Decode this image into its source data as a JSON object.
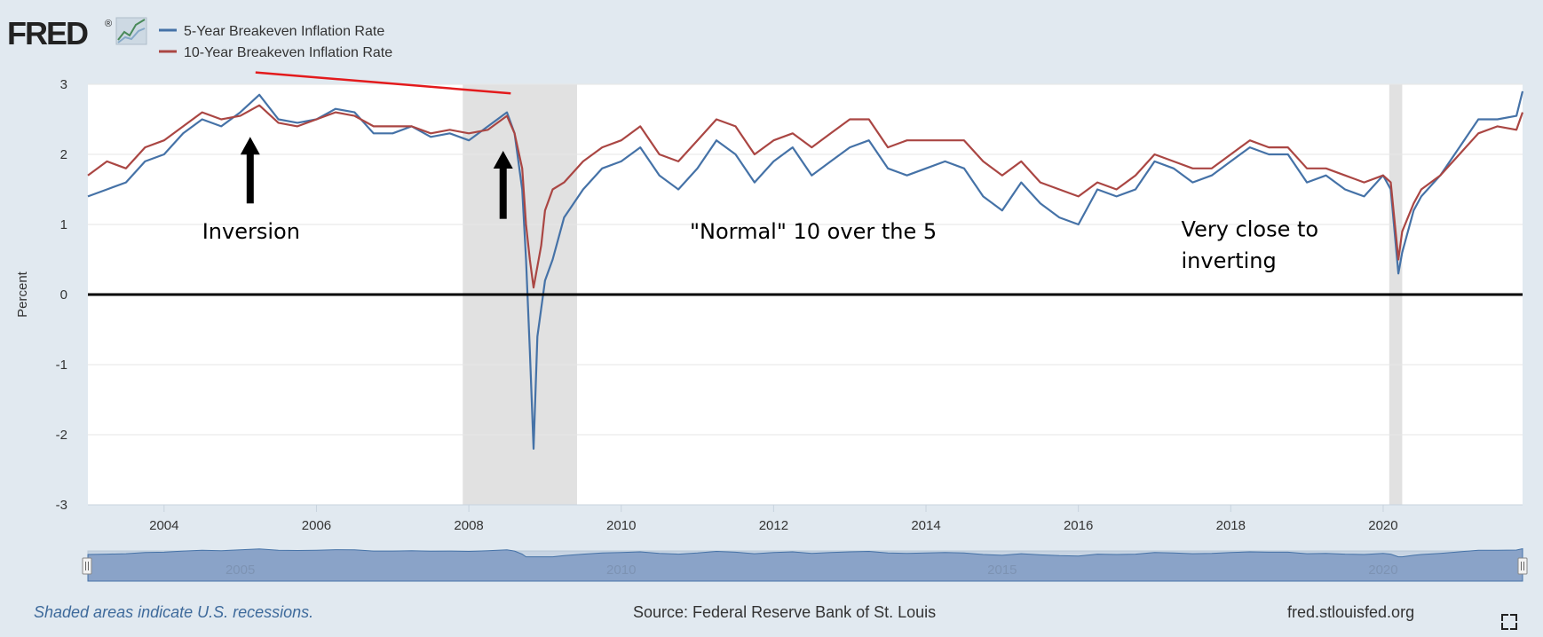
{
  "brand": {
    "logo_text": "FRED",
    "logo_mark": "®",
    "logo_icon": "line-graph-icon"
  },
  "colors": {
    "background": "#e1e9f0",
    "plot_bg": "#ffffff",
    "recession": "#e1e1e1",
    "series_5y": "#4572a7",
    "series_10y": "#aa4643",
    "annotation_line": "#e31a1c"
  },
  "footer": {
    "note": "Shaded areas indicate U.S. recessions.",
    "source": "Source: Federal Reserve Bank of St. Louis",
    "site": "fred.stlouisfed.org",
    "fullscreen_icon": "fullscreen-icon"
  },
  "chart_data": {
    "type": "line",
    "ylabel": "Percent",
    "xlim": [
      2003.0,
      2021.83
    ],
    "ylim": [
      -3,
      3
    ],
    "grid": true,
    "legend_placement": "top-left",
    "x_ticks": [
      "2004",
      "2006",
      "2008",
      "2010",
      "2012",
      "2014",
      "2016",
      "2018",
      "2020"
    ],
    "y_ticks": [
      "3",
      "2",
      "1",
      "0",
      "-1",
      "-2",
      "-3"
    ],
    "navigator_labels": [
      "2005",
      "2010",
      "2015",
      "2020"
    ],
    "recessions": [
      [
        2007.92,
        2009.42
      ],
      [
        2020.08,
        2020.25
      ]
    ],
    "series": [
      {
        "name": "5-Year Breakeven Inflation Rate",
        "x": [
          2003.0,
          2003.25,
          2003.5,
          2003.75,
          2004.0,
          2004.25,
          2004.5,
          2004.75,
          2005.0,
          2005.25,
          2005.5,
          2005.75,
          2006.0,
          2006.25,
          2006.5,
          2006.75,
          2007.0,
          2007.25,
          2007.5,
          2007.75,
          2008.0,
          2008.25,
          2008.5,
          2008.6,
          2008.7,
          2008.75,
          2008.8,
          2008.85,
          2008.9,
          2008.95,
          2009.0,
          2009.1,
          2009.25,
          2009.5,
          2009.75,
          2010.0,
          2010.25,
          2010.5,
          2010.75,
          2011.0,
          2011.25,
          2011.5,
          2011.75,
          2012.0,
          2012.25,
          2012.5,
          2012.75,
          2013.0,
          2013.25,
          2013.5,
          2013.75,
          2014.0,
          2014.25,
          2014.5,
          2014.75,
          2015.0,
          2015.25,
          2015.5,
          2015.75,
          2016.0,
          2016.25,
          2016.5,
          2016.75,
          2017.0,
          2017.25,
          2017.5,
          2017.75,
          2018.0,
          2018.25,
          2018.5,
          2018.75,
          2019.0,
          2019.25,
          2019.5,
          2019.75,
          2020.0,
          2020.1,
          2020.2,
          2020.25,
          2020.4,
          2020.5,
          2020.75,
          2021.0,
          2021.25,
          2021.5,
          2021.75,
          2021.83
        ],
        "values": [
          1.4,
          1.5,
          1.6,
          1.9,
          2.0,
          2.3,
          2.5,
          2.4,
          2.6,
          2.85,
          2.5,
          2.45,
          2.5,
          2.65,
          2.6,
          2.3,
          2.3,
          2.4,
          2.25,
          2.3,
          2.2,
          2.4,
          2.6,
          2.3,
          1.5,
          0.5,
          -0.8,
          -2.2,
          -0.6,
          -0.2,
          0.2,
          0.5,
          1.1,
          1.5,
          1.8,
          1.9,
          2.1,
          1.7,
          1.5,
          1.8,
          2.2,
          2.0,
          1.6,
          1.9,
          2.1,
          1.7,
          1.9,
          2.1,
          2.2,
          1.8,
          1.7,
          1.8,
          1.9,
          1.8,
          1.4,
          1.2,
          1.6,
          1.3,
          1.1,
          1.0,
          1.5,
          1.4,
          1.5,
          1.9,
          1.8,
          1.6,
          1.7,
          1.9,
          2.1,
          2.0,
          2.0,
          1.6,
          1.7,
          1.5,
          1.4,
          1.7,
          1.5,
          0.3,
          0.6,
          1.2,
          1.4,
          1.7,
          2.1,
          2.5,
          2.5,
          2.55,
          2.9
        ]
      },
      {
        "name": "10-Year Breakeven Inflation Rate",
        "x": [
          2003.0,
          2003.25,
          2003.5,
          2003.75,
          2004.0,
          2004.25,
          2004.5,
          2004.75,
          2005.0,
          2005.25,
          2005.5,
          2005.75,
          2006.0,
          2006.25,
          2006.5,
          2006.75,
          2007.0,
          2007.25,
          2007.5,
          2007.75,
          2008.0,
          2008.25,
          2008.5,
          2008.6,
          2008.7,
          2008.75,
          2008.8,
          2008.85,
          2008.9,
          2008.95,
          2009.0,
          2009.1,
          2009.25,
          2009.5,
          2009.75,
          2010.0,
          2010.25,
          2010.5,
          2010.75,
          2011.0,
          2011.25,
          2011.5,
          2011.75,
          2012.0,
          2012.25,
          2012.5,
          2012.75,
          2013.0,
          2013.25,
          2013.5,
          2013.75,
          2014.0,
          2014.25,
          2014.5,
          2014.75,
          2015.0,
          2015.25,
          2015.5,
          2015.75,
          2016.0,
          2016.25,
          2016.5,
          2016.75,
          2017.0,
          2017.25,
          2017.5,
          2017.75,
          2018.0,
          2018.25,
          2018.5,
          2018.75,
          2019.0,
          2019.25,
          2019.5,
          2019.75,
          2020.0,
          2020.1,
          2020.2,
          2020.25,
          2020.4,
          2020.5,
          2020.75,
          2021.0,
          2021.25,
          2021.5,
          2021.75,
          2021.83
        ],
        "values": [
          1.7,
          1.9,
          1.8,
          2.1,
          2.2,
          2.4,
          2.6,
          2.5,
          2.55,
          2.7,
          2.45,
          2.4,
          2.5,
          2.6,
          2.55,
          2.4,
          2.4,
          2.4,
          2.3,
          2.35,
          2.3,
          2.35,
          2.55,
          2.3,
          1.8,
          1.0,
          0.5,
          0.1,
          0.4,
          0.7,
          1.2,
          1.5,
          1.6,
          1.9,
          2.1,
          2.2,
          2.4,
          2.0,
          1.9,
          2.2,
          2.5,
          2.4,
          2.0,
          2.2,
          2.3,
          2.1,
          2.3,
          2.5,
          2.5,
          2.1,
          2.2,
          2.2,
          2.2,
          2.2,
          1.9,
          1.7,
          1.9,
          1.6,
          1.5,
          1.4,
          1.6,
          1.5,
          1.7,
          2.0,
          1.9,
          1.8,
          1.8,
          2.0,
          2.2,
          2.1,
          2.1,
          1.8,
          1.8,
          1.7,
          1.6,
          1.7,
          1.6,
          0.5,
          0.9,
          1.3,
          1.5,
          1.7,
          2.0,
          2.3,
          2.4,
          2.35,
          2.6
        ]
      }
    ],
    "annotations": [
      {
        "text": "Inversion",
        "x": 2004.5,
        "y": 0.8
      },
      {
        "text": "\"Normal\" 10 over the 5",
        "x": 2010.9,
        "y": 0.8
      },
      {
        "text": "Very close to",
        "x": 2017.35,
        "y": 0.83
      },
      {
        "text": "inverting",
        "x": 2017.35,
        "y": 0.38
      }
    ],
    "arrows": [
      {
        "x": 2005.13,
        "y_from": 1.3,
        "y_to": 2.25
      },
      {
        "x": 2008.45,
        "y_from": 1.08,
        "y_to": 2.05
      }
    ],
    "trend_line": {
      "x": [
        2005.2,
        2008.55
      ],
      "y": [
        3.17,
        2.87
      ]
    }
  }
}
